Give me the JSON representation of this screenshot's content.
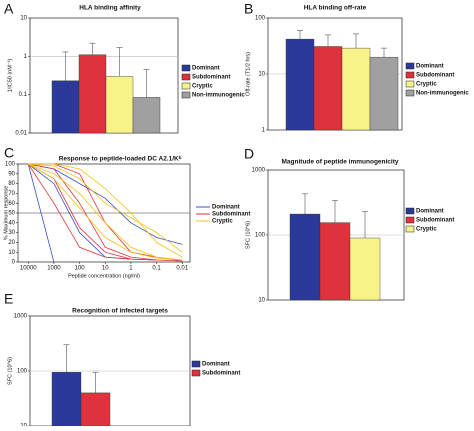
{
  "chart_data": [
    {
      "type": "bar",
      "letter": "A",
      "title": "HLA binding affinity",
      "y_label": "1/IC50 (nM⁻¹)",
      "y_log": true,
      "ylim": [
        0.01,
        10
      ],
      "yticks": [
        0.01,
        0.1,
        1,
        10
      ],
      "reference_line": 1,
      "series": [
        {
          "name": "Dominant",
          "color": "#2b3a9a",
          "values": [
            0.23
          ],
          "errors": [
            1.07
          ]
        },
        {
          "name": "Subdominant",
          "color": "#e0323c",
          "values": [
            1.1
          ],
          "errors": [
            1.1
          ]
        },
        {
          "name": "Cryptic",
          "color": "#f7f28a",
          "values": [
            0.3
          ],
          "errors": [
            1.4
          ]
        },
        {
          "name": "Non-immunogenic",
          "color": "#a0a0a0",
          "values": [
            0.085
          ],
          "errors": [
            0.365
          ]
        }
      ]
    },
    {
      "type": "bar",
      "letter": "B",
      "title": "HLA binding off-rate",
      "y_label": "Off-rate (T1/2 hrs)",
      "y_log": true,
      "ylim": [
        1,
        100
      ],
      "yticks": [
        1,
        10,
        100
      ],
      "reference_line": 10,
      "series": [
        {
          "name": "Dominant",
          "color": "#2b3a9a",
          "values": [
            42
          ],
          "errors": [
            18
          ]
        },
        {
          "name": "Subdominant",
          "color": "#e0323c",
          "values": [
            31
          ],
          "errors": [
            19
          ]
        },
        {
          "name": "Cryptic",
          "color": "#f7f28a",
          "values": [
            29
          ],
          "errors": [
            23
          ]
        },
        {
          "name": "Non-immunogenic",
          "color": "#a0a0a0",
          "values": [
            20
          ],
          "errors": [
            9
          ]
        }
      ]
    },
    {
      "type": "line",
      "letter": "C",
      "title": "Response to peptide-loaded DC A2.1/Kᵇ",
      "x_label": "Peptide concentration (ng/ml)",
      "y_label": "% Maximum response",
      "x_log": true,
      "x": [
        10000,
        1000,
        100,
        10,
        1,
        0.1,
        0.01
      ],
      "xlim": [
        25000,
        0.005
      ],
      "xticks": [
        10000,
        1000,
        100,
        10,
        1,
        0.1,
        0.01
      ],
      "ylim": [
        0,
        100
      ],
      "yticks": [
        0,
        10,
        20,
        30,
        40,
        50,
        60,
        70,
        80,
        90,
        100
      ],
      "reference_line": 50,
      "series": [
        {
          "name": "Dominant",
          "color": "#3a4fc8",
          "lines": [
            [
              100,
              0,
              null,
              null,
              null,
              null,
              null
            ],
            [
              100,
              95,
              80,
              65,
              40,
              25,
              18
            ],
            [
              100,
              80,
              30,
              5,
              3,
              2,
              null
            ]
          ]
        },
        {
          "name": "Subdominant",
          "color": "#e0323c",
          "lines": [
            [
              100,
              95,
              60,
              15,
              5,
              2,
              1
            ],
            [
              100,
              85,
              35,
              10,
              3,
              null,
              null
            ],
            [
              100,
              100,
              90,
              40,
              10,
              5,
              1
            ],
            [
              100,
              60,
              15,
              5,
              3,
              2,
              null
            ]
          ]
        },
        {
          "name": "Cryptic",
          "color": "#f0c419",
          "lines": [
            [
              100,
              98,
              85,
              60,
              45,
              30,
              10
            ],
            [
              100,
              90,
              70,
              40,
              15,
              5,
              2
            ],
            [
              100,
              100,
              95,
              75,
              50,
              20,
              5
            ],
            [
              100,
              85,
              55,
              25,
              10,
              4,
              2
            ]
          ]
        }
      ]
    },
    {
      "type": "bar",
      "letter": "D",
      "title": "Magnitude of peptide immunogenicity",
      "y_label": "SFC (10^6)",
      "y_log": true,
      "ylim": [
        10,
        1000
      ],
      "yticks": [
        10,
        100,
        1000
      ],
      "reference_line": 100,
      "series": [
        {
          "name": "Dominant",
          "color": "#2b3a9a",
          "values": [
            210
          ],
          "errors": [
            220
          ]
        },
        {
          "name": "Subdominant",
          "color": "#e0323c",
          "values": [
            155
          ],
          "errors": [
            185
          ]
        },
        {
          "name": "Cryptic",
          "color": "#f7f28a",
          "values": [
            90
          ],
          "errors": [
            140
          ]
        }
      ]
    },
    {
      "type": "bar",
      "letter": "E",
      "title": "Recognition of infected targets",
      "y_label": "SFC (10^6)",
      "y_log": true,
      "ylim": [
        10,
        1000
      ],
      "yticks": [
        10,
        100,
        1000
      ],
      "reference_line": 100,
      "series": [
        {
          "name": "Dominant",
          "color": "#2b3a9a",
          "values": [
            95
          ],
          "errors": [
            205
          ]
        },
        {
          "name": "Subdominant",
          "color": "#e0323c",
          "values": [
            40
          ],
          "errors": [
            55
          ]
        }
      ]
    }
  ]
}
